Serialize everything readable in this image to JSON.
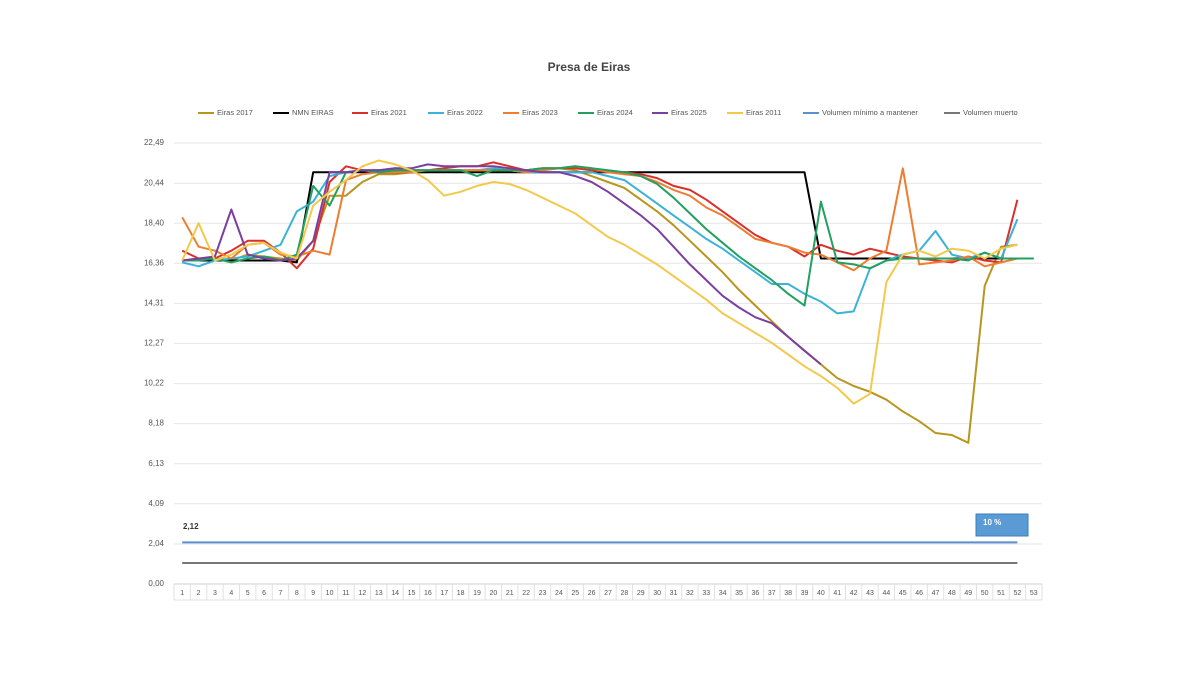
{
  "chart_data": {
    "type": "line",
    "title": "Presa de Eiras",
    "categories": [
      1,
      2,
      3,
      4,
      5,
      6,
      7,
      8,
      9,
      10,
      11,
      12,
      13,
      14,
      15,
      16,
      17,
      18,
      19,
      20,
      21,
      22,
      23,
      24,
      25,
      26,
      27,
      28,
      29,
      30,
      31,
      32,
      33,
      34,
      35,
      36,
      37,
      38,
      39,
      40,
      41,
      42,
      43,
      44,
      45,
      46,
      47,
      48,
      49,
      50,
      51,
      52,
      53
    ],
    "ylim": [
      0,
      22.49
    ],
    "yticks": [
      {
        "value": 0,
        "label": "0,00"
      },
      {
        "value": 2.04,
        "label": "2,04"
      },
      {
        "value": 4.09,
        "label": "4,09"
      },
      {
        "value": 6.13,
        "label": "6,13"
      },
      {
        "value": 8.18,
        "label": "8,18"
      },
      {
        "value": 10.22,
        "label": "10,22"
      },
      {
        "value": 12.27,
        "label": "12,27"
      },
      {
        "value": 14.31,
        "label": "14,31"
      },
      {
        "value": 16.36,
        "label": "16,36"
      },
      {
        "value": 18.4,
        "label": "18,40"
      },
      {
        "value": 20.44,
        "label": "20,44"
      },
      {
        "value": 22.49,
        "label": "22,49"
      }
    ],
    "grid": true,
    "legend": "top",
    "series": [
      {
        "name": "Eiras 2017",
        "color": "#b8961e",
        "values": [
          16.5,
          16.6,
          16.6,
          16.5,
          16.8,
          16.7,
          16.6,
          16.5,
          17.5,
          19.8,
          19.8,
          20.5,
          20.9,
          20.9,
          21.0,
          21.0,
          21.1,
          21.1,
          21.1,
          21.1,
          21.1,
          21.1,
          21.1,
          21.2,
          21.1,
          20.8,
          20.5,
          20.2,
          19.6,
          19.0,
          18.3,
          17.5,
          16.7,
          15.9,
          15.0,
          14.2,
          13.4,
          12.6,
          11.9,
          11.2,
          10.5,
          10.1,
          9.8,
          9.4,
          8.8,
          8.3,
          7.7,
          7.6,
          7.2,
          15.2,
          17.2,
          17.3,
          null
        ]
      },
      {
        "name": "NMN EIRAS",
        "color": "#000000",
        "values": [
          16.5,
          16.5,
          16.5,
          16.5,
          16.5,
          16.5,
          16.5,
          16.4,
          21.0,
          21.0,
          21.0,
          21.0,
          21.0,
          21.0,
          21.0,
          21.0,
          21.0,
          21.0,
          21.0,
          21.0,
          21.0,
          21.0,
          21.0,
          21.0,
          21.0,
          21.0,
          21.0,
          21.0,
          21.0,
          21.0,
          21.0,
          21.0,
          21.0,
          21.0,
          21.0,
          21.0,
          21.0,
          21.0,
          21.0,
          16.6,
          16.6,
          16.6,
          16.6,
          16.6,
          16.6,
          16.6,
          16.6,
          16.6,
          16.6,
          16.6,
          16.6,
          16.6,
          null
        ]
      },
      {
        "name": "Eiras 2021",
        "color": "#d9302c",
        "values": [
          17.0,
          16.6,
          16.6,
          17.0,
          17.5,
          17.5,
          16.9,
          16.1,
          17.1,
          20.5,
          21.3,
          21.1,
          21.1,
          21.1,
          21.1,
          21.1,
          21.2,
          21.3,
          21.3,
          21.5,
          21.3,
          21.1,
          21.2,
          21.2,
          21.2,
          21.1,
          21.0,
          21.0,
          20.9,
          20.7,
          20.3,
          20.1,
          19.6,
          19.0,
          18.4,
          17.8,
          17.4,
          17.2,
          16.7,
          17.3,
          17.0,
          16.8,
          17.1,
          16.9,
          16.7,
          16.6,
          16.5,
          16.4,
          16.7,
          16.5,
          16.4,
          19.6,
          null
        ]
      },
      {
        "name": "Eiras 2022",
        "color": "#3bb3d8",
        "values": [
          16.4,
          16.2,
          16.5,
          16.6,
          16.7,
          17.0,
          17.3,
          19.0,
          19.5,
          20.8,
          21.0,
          21.1,
          21.1,
          21.2,
          21.1,
          21.1,
          21.1,
          21.1,
          21.1,
          21.2,
          21.1,
          21.0,
          21.0,
          21.0,
          21.0,
          21.0,
          20.8,
          20.6,
          20.0,
          19.4,
          18.8,
          18.2,
          17.6,
          17.1,
          16.5,
          15.9,
          15.3,
          15.3,
          14.8,
          14.4,
          13.8,
          13.9,
          16.1,
          16.5,
          16.8,
          17.0,
          18.0,
          16.8,
          16.6,
          16.9,
          16.6,
          18.6,
          null
        ]
      },
      {
        "name": "Eiras 2023",
        "color": "#ed7d31",
        "values": [
          18.7,
          17.2,
          17.0,
          16.6,
          17.3,
          17.4,
          16.8,
          16.7,
          17.0,
          16.8,
          20.6,
          20.9,
          21.0,
          21.0,
          21.0,
          21.1,
          21.1,
          21.1,
          21.1,
          21.1,
          21.1,
          21.0,
          21.1,
          21.2,
          21.3,
          21.2,
          21.0,
          20.9,
          20.8,
          20.5,
          20.1,
          19.8,
          19.2,
          18.8,
          18.2,
          17.6,
          17.4,
          17.2,
          16.9,
          16.8,
          16.4,
          16.0,
          16.6,
          17.0,
          21.2,
          16.3,
          16.4,
          16.5,
          16.7,
          16.2,
          16.4,
          16.6,
          null
        ]
      },
      {
        "name": "Eiras 2024",
        "color": "#22a060",
        "values": [
          16.5,
          16.5,
          16.6,
          16.4,
          16.6,
          16.7,
          16.5,
          16.8,
          20.3,
          19.3,
          21.0,
          21.1,
          21.0,
          21.1,
          21.1,
          21.1,
          21.1,
          21.1,
          20.8,
          21.1,
          21.1,
          21.1,
          21.2,
          21.2,
          21.3,
          21.2,
          21.1,
          21.0,
          20.8,
          20.4,
          19.7,
          18.9,
          18.1,
          17.4,
          16.7,
          16.1,
          15.5,
          14.8,
          14.2,
          19.5,
          16.4,
          16.3,
          16.1,
          16.5,
          16.6,
          16.6,
          16.6,
          16.6,
          16.5,
          16.9,
          16.6,
          16.6,
          16.6
        ]
      },
      {
        "name": "Eiras 2025",
        "color": "#7b3fa0",
        "values": [
          16.5,
          16.6,
          16.7,
          19.1,
          16.8,
          16.6,
          16.5,
          16.6,
          17.5,
          21.0,
          21.0,
          21.1,
          21.1,
          21.2,
          21.2,
          21.4,
          21.3,
          21.3,
          21.3,
          21.3,
          21.2,
          21.1,
          21.0,
          21.0,
          20.8,
          20.5,
          20.0,
          19.4,
          18.8,
          18.1,
          17.2,
          16.3,
          15.5,
          14.7,
          14.1,
          13.6,
          13.3,
          12.6,
          11.9,
          11.2,
          null,
          null,
          null,
          null,
          null,
          null,
          null,
          null,
          null,
          null,
          null,
          null,
          null
        ]
      },
      {
        "name": "Eiras 2011",
        "color": "#f2c94c",
        "values": [
          16.5,
          18.4,
          16.5,
          16.8,
          17.3,
          17.4,
          16.9,
          16.6,
          19.3,
          20.0,
          20.6,
          21.3,
          21.6,
          21.4,
          21.1,
          20.6,
          19.8,
          20.0,
          20.3,
          20.5,
          20.4,
          20.1,
          19.7,
          19.3,
          18.9,
          18.3,
          17.7,
          17.3,
          16.8,
          16.3,
          15.7,
          15.1,
          14.5,
          13.8,
          13.3,
          12.8,
          12.3,
          11.7,
          11.1,
          10.6,
          10.0,
          9.2,
          9.7,
          15.4,
          16.8,
          17.0,
          16.7,
          17.1,
          17.0,
          16.6,
          17.1,
          17.3,
          null
        ]
      },
      {
        "name": "Volumen mínimo a mantener",
        "color": "#5b8fd0",
        "values": [
          2.12,
          2.12,
          2.12,
          2.12,
          2.12,
          2.12,
          2.12,
          2.12,
          2.12,
          2.12,
          2.12,
          2.12,
          2.12,
          2.12,
          2.12,
          2.12,
          2.12,
          2.12,
          2.12,
          2.12,
          2.12,
          2.12,
          2.12,
          2.12,
          2.12,
          2.12,
          2.12,
          2.12,
          2.12,
          2.12,
          2.12,
          2.12,
          2.12,
          2.12,
          2.12,
          2.12,
          2.12,
          2.12,
          2.12,
          2.12,
          2.12,
          2.12,
          2.12,
          2.12,
          2.12,
          2.12,
          2.12,
          2.12,
          2.12,
          2.12,
          2.12,
          2.12,
          null
        ]
      },
      {
        "name": "Volumen muerto",
        "color": "#777777",
        "values": [
          1.07,
          1.07,
          1.07,
          1.07,
          1.07,
          1.07,
          1.07,
          1.07,
          1.07,
          1.07,
          1.07,
          1.07,
          1.07,
          1.07,
          1.07,
          1.07,
          1.07,
          1.07,
          1.07,
          1.07,
          1.07,
          1.07,
          1.07,
          1.07,
          1.07,
          1.07,
          1.07,
          1.07,
          1.07,
          1.07,
          1.07,
          1.07,
          1.07,
          1.07,
          1.07,
          1.07,
          1.07,
          1.07,
          1.07,
          1.07,
          1.07,
          1.07,
          1.07,
          1.07,
          1.07,
          1.07,
          1.07,
          1.07,
          1.07,
          1.07,
          1.07,
          1.07,
          null
        ]
      }
    ],
    "annotations": [
      {
        "text": "2,12"
      },
      {
        "text": "10 %"
      }
    ]
  }
}
